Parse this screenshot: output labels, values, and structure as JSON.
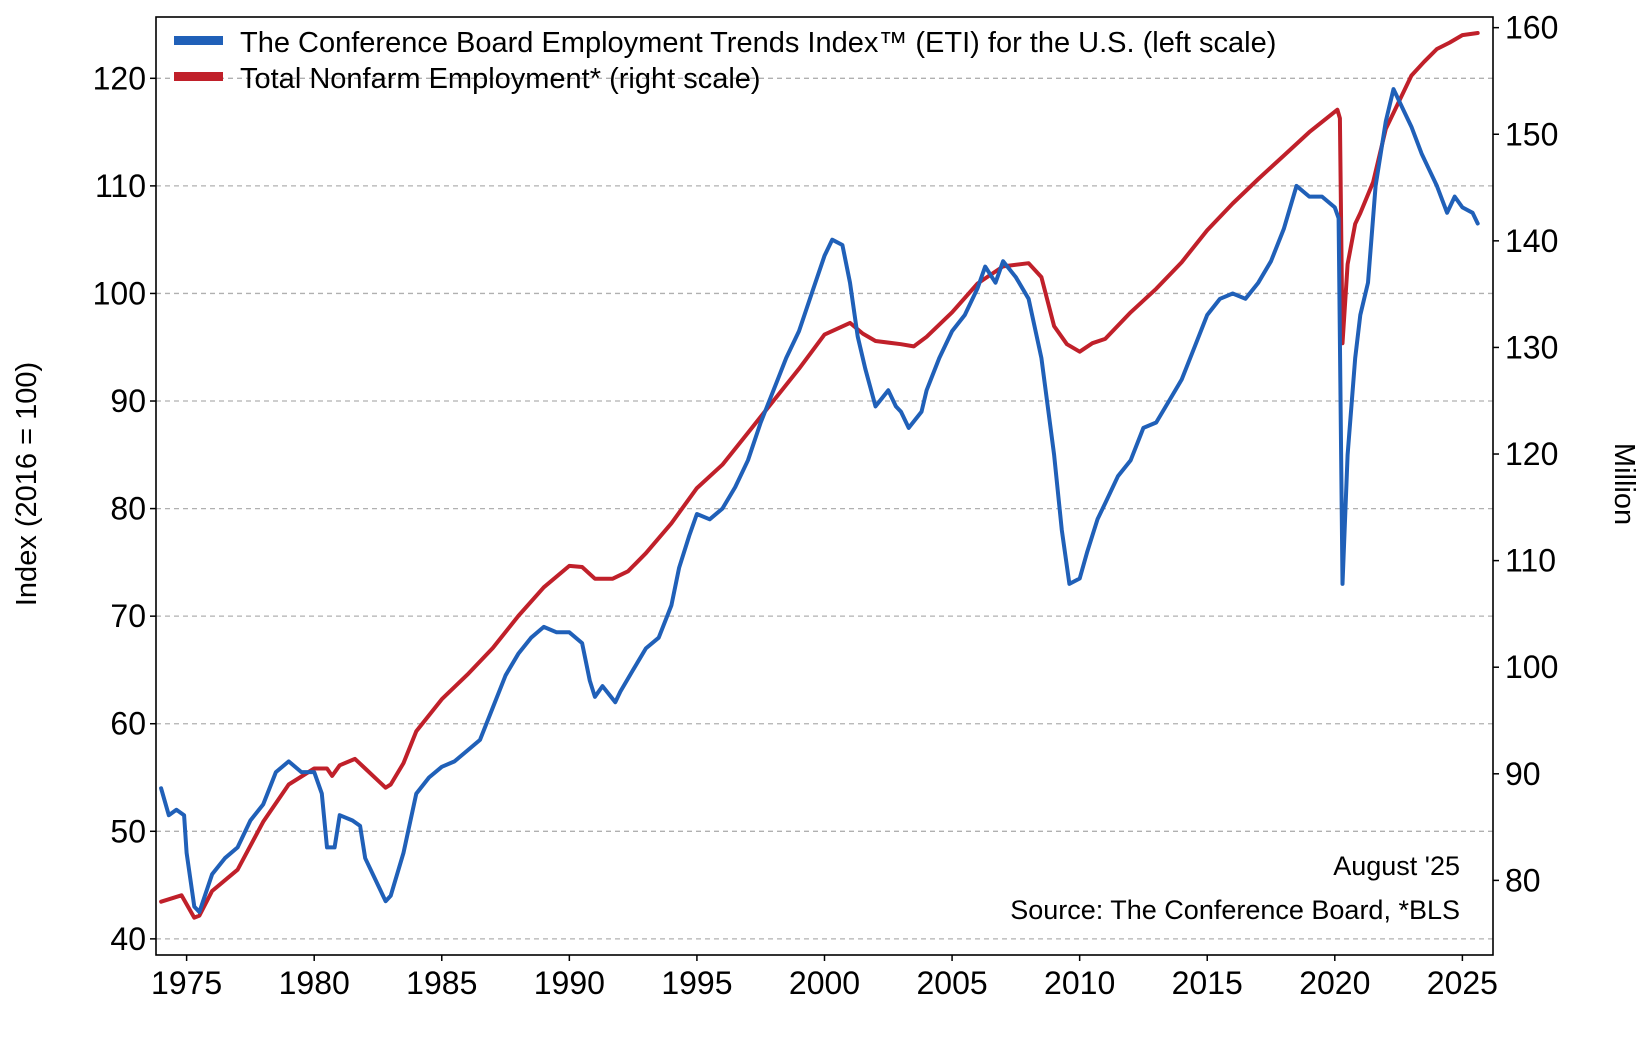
{
  "chart_data": {
    "type": "line",
    "title": "",
    "xlabel": "",
    "ylabel_left": "Index (2016 = 100)",
    "ylabel_right": "Million",
    "xlim": [
      1973.8,
      2026.2
    ],
    "ylim_left": [
      38.5,
      125.7
    ],
    "ylim_right": [
      73,
      161
    ],
    "x_ticks": [
      1975,
      1980,
      1985,
      1990,
      1995,
      2000,
      2005,
      2010,
      2015,
      2020,
      2025
    ],
    "y_ticks_left": [
      40,
      50,
      60,
      70,
      80,
      90,
      100,
      110,
      120
    ],
    "y_ticks_right": [
      80,
      90,
      100,
      110,
      120,
      130,
      140,
      150,
      160
    ],
    "grid": "horizontal dashed at left-axis ticks",
    "legend_placement": "top-left",
    "series": [
      {
        "name": "The Conference Board Employment Trends Index™ (ETI) for the U.S. (left scale)",
        "axis": "left",
        "color": "#2060b8",
        "x": [
          1974.0,
          1974.3,
          1974.6,
          1974.9,
          1975.0,
          1975.3,
          1975.5,
          1976,
          1976.5,
          1977,
          1977.5,
          1978,
          1978.5,
          1979,
          1979.5,
          1980,
          1980.3,
          1980.5,
          1980.8,
          1981,
          1981.5,
          1981.8,
          1982,
          1982.5,
          1982.8,
          1983,
          1983.5,
          1984,
          1984.5,
          1985,
          1985.5,
          1986,
          1986.5,
          1987,
          1987.5,
          1988,
          1988.5,
          1989,
          1989.5,
          1990,
          1990.5,
          1990.8,
          1991,
          1991.3,
          1991.8,
          1992,
          1992.5,
          1993,
          1993.5,
          1994,
          1994.3,
          1994.7,
          1995,
          1995.5,
          1996,
          1996.5,
          1997,
          1997.5,
          1998,
          1998.5,
          1999,
          1999.5,
          2000,
          2000.3,
          2000.7,
          2001,
          2001.3,
          2001.6,
          2002,
          2002.5,
          2002.8,
          2003,
          2003.3,
          2003.8,
          2004,
          2004.5,
          2005,
          2005.5,
          2006,
          2006.3,
          2006.7,
          2007,
          2007.5,
          2008,
          2008.5,
          2009,
          2009.3,
          2009.6,
          2010,
          2010.3,
          2010.7,
          2011,
          2011.5,
          2012,
          2012.5,
          2013,
          2013.5,
          2014,
          2014.5,
          2015,
          2015.5,
          2016,
          2016.5,
          2017,
          2017.5,
          2018,
          2018.5,
          2019,
          2019.5,
          2020,
          2020.15,
          2020.3,
          2020.5,
          2020.8,
          2021,
          2021.3,
          2021.6,
          2022,
          2022.3,
          2022.7,
          2023,
          2023.4,
          2023.7,
          2024,
          2024.4,
          2024.7,
          2025,
          2025.4,
          2025.6
        ],
        "values": [
          54,
          51.5,
          52,
          51.5,
          48,
          43,
          42.5,
          46,
          47.5,
          48.5,
          51,
          52.5,
          55.5,
          56.5,
          55.5,
          55.5,
          53.5,
          48.5,
          48.5,
          51.5,
          51,
          50.5,
          47.5,
          45,
          43.5,
          44,
          48,
          53.5,
          55,
          56,
          56.5,
          57.5,
          58.5,
          61.5,
          64.5,
          66.5,
          68,
          69,
          68.5,
          68.5,
          67.5,
          64,
          62.5,
          63.5,
          62,
          63,
          65,
          67,
          68,
          71,
          74.5,
          77.5,
          79.5,
          79,
          80,
          82,
          84.5,
          88,
          91,
          94,
          96.5,
          100,
          103.5,
          105,
          104.5,
          101,
          96,
          93,
          89.5,
          91,
          89.5,
          89,
          87.5,
          89,
          91,
          94,
          96.5,
          98,
          100.5,
          102.5,
          101,
          103,
          101.5,
          99.5,
          94,
          85,
          78,
          73,
          73.5,
          76,
          79,
          80.5,
          83,
          84.5,
          87.5,
          88,
          90,
          92,
          95,
          98,
          99.5,
          100,
          99.5,
          101,
          103,
          106,
          110,
          109,
          109,
          108,
          107,
          73,
          85,
          94,
          98,
          101,
          110,
          116,
          119,
          117,
          115.5,
          113,
          111.5,
          110,
          107.5,
          109,
          108,
          107.5,
          106.5
        ]
      },
      {
        "name": "Total Nonfarm Employment* (right scale)",
        "axis": "right",
        "color": "#c0202a",
        "x": [
          1974,
          1974.8,
          1975.3,
          1975.5,
          1976,
          1977,
          1978,
          1979,
          1980,
          1980.5,
          1980.7,
          1981,
          1981.6,
          1982,
          1982.8,
          1983,
          1983.5,
          1984,
          1985,
          1986,
          1987,
          1988,
          1989,
          1990,
          1990.5,
          1991,
          1991.7,
          1992.3,
          1993,
          1994,
          1995,
          1996,
          1997,
          1998,
          1999,
          2000,
          2001,
          2001.5,
          2002,
          2003,
          2003.5,
          2004,
          2005,
          2006,
          2007,
          2008,
          2008.5,
          2009,
          2009.5,
          2010,
          2010.5,
          2011,
          2012,
          2013,
          2014,
          2015,
          2016,
          2017,
          2018,
          2019,
          2020.1,
          2020.2,
          2020.3,
          2020.5,
          2020.8,
          2021,
          2021.5,
          2022,
          2022.5,
          2023,
          2023.5,
          2024,
          2024.5,
          2025,
          2025.6
        ],
        "values": [
          78,
          78.6,
          76.5,
          76.7,
          79,
          81,
          85.5,
          89,
          90.5,
          90.5,
          89.8,
          90.8,
          91.4,
          90.5,
          88.7,
          89,
          91,
          94,
          97,
          99.3,
          101.8,
          104.8,
          107.5,
          109.5,
          109.4,
          108.3,
          108.3,
          109,
          110.7,
          113.5,
          116.8,
          119,
          122,
          125,
          128,
          131.2,
          132.3,
          131.3,
          130.6,
          130.3,
          130.1,
          131,
          133.3,
          136,
          137.6,
          137.9,
          136.6,
          132,
          130.3,
          129.6,
          130.4,
          130.8,
          133.3,
          135.5,
          138,
          141,
          143.5,
          145.8,
          148,
          150.2,
          152.3,
          151.5,
          130.4,
          137.8,
          141.6,
          142.6,
          145.5,
          150.5,
          153,
          155.5,
          156.8,
          158,
          158.6,
          159.3,
          159.5
        ]
      }
    ],
    "annotations": {
      "date": "August '25",
      "source": "Source: The Conference Board, *BLS"
    }
  }
}
